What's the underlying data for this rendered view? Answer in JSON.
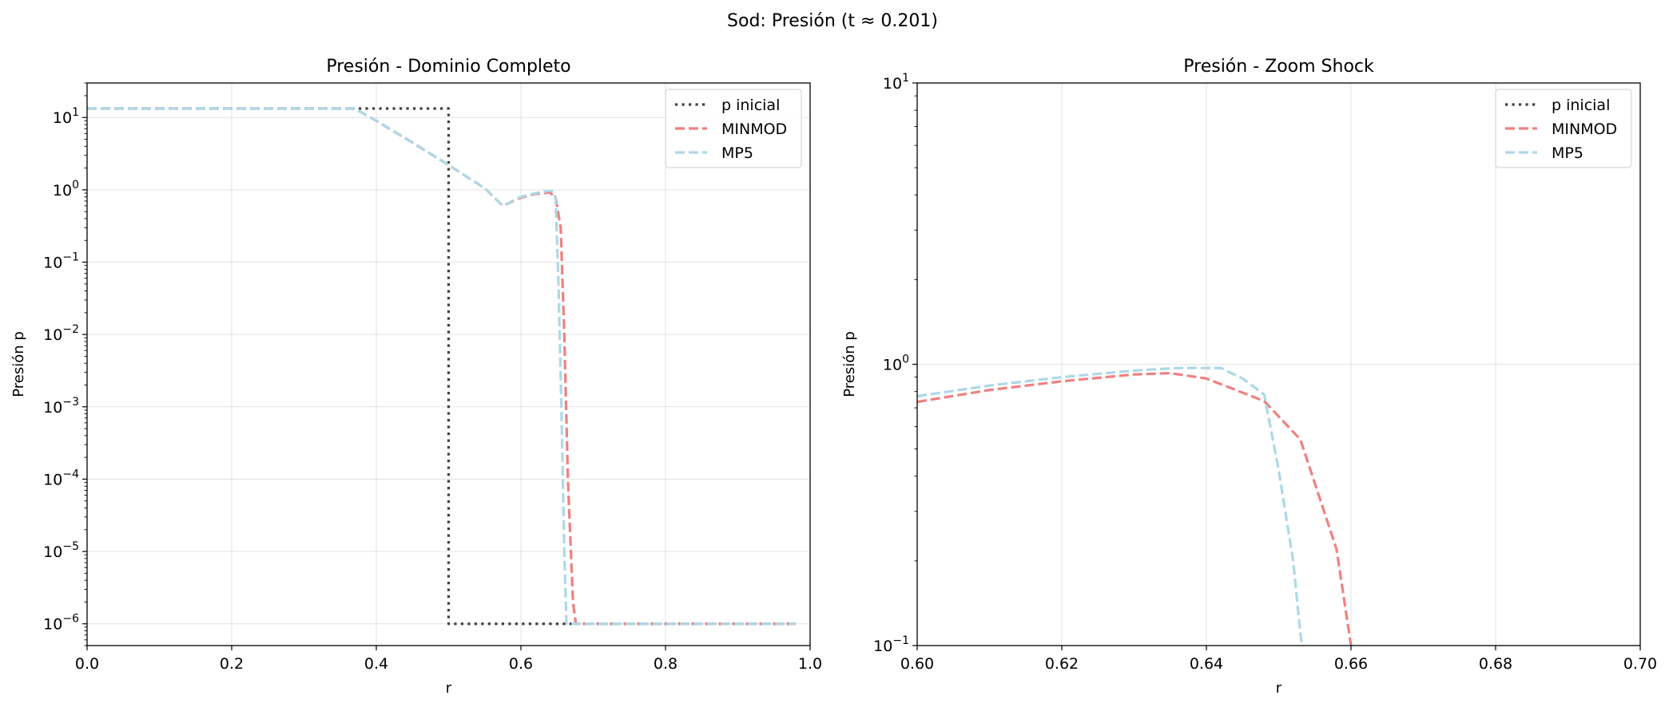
{
  "figure": {
    "suptitle": "Sod: Presión (t ≈ 0.201)"
  },
  "chart_data": [
    {
      "type": "line",
      "title": "Presión - Dominio Completo",
      "xlabel": "r",
      "ylabel": "Presión p",
      "xlim": [
        0.0,
        1.0
      ],
      "ylim": [
        5e-07,
        30
      ],
      "yscale": "log",
      "grid": true,
      "legend_position": "top-right",
      "x_ticks": [
        "0.0",
        "0.2",
        "0.4",
        "0.6",
        "0.8",
        "1.0"
      ],
      "y_ticks": [
        {
          "base": "10",
          "exp": "−6",
          "value": 1e-06
        },
        {
          "base": "10",
          "exp": "−5",
          "value": 1e-05
        },
        {
          "base": "10",
          "exp": "−4",
          "value": 0.0001
        },
        {
          "base": "10",
          "exp": "−3",
          "value": 0.001
        },
        {
          "base": "10",
          "exp": "−2",
          "value": 0.01
        },
        {
          "base": "10",
          "exp": "−1",
          "value": 0.1
        },
        {
          "base": "10",
          "exp": "0",
          "value": 1
        },
        {
          "base": "10",
          "exp": "1",
          "value": 10
        }
      ],
      "series": [
        {
          "name": "p inicial",
          "color": "#404040",
          "dash": "dotted",
          "x": [
            0.0,
            0.5,
            0.5,
            0.98
          ],
          "y": [
            13.3,
            13.3,
            1e-06,
            1e-06
          ]
        },
        {
          "name": "MINMOD",
          "color": "#f08080",
          "dash": "dashed",
          "x": [
            0.0,
            0.37,
            0.4,
            0.45,
            0.5,
            0.55,
            0.575,
            0.6,
            0.62,
            0.64,
            0.648,
            0.655,
            0.66,
            0.665,
            0.672,
            0.676,
            0.98
          ],
          "y": [
            13.3,
            13.3,
            9.0,
            4.5,
            2.2,
            1.05,
            0.6,
            0.78,
            0.88,
            0.92,
            0.78,
            0.3,
            0.01,
            0.0001,
            2e-06,
            1e-06,
            1e-06
          ]
        },
        {
          "name": "MP5",
          "color": "#add8e6",
          "dash": "dashed",
          "x": [
            0.0,
            0.37,
            0.4,
            0.45,
            0.5,
            0.55,
            0.575,
            0.6,
            0.62,
            0.64,
            0.645,
            0.648,
            0.652,
            0.656,
            0.66,
            0.663,
            0.98
          ],
          "y": [
            13.3,
            13.3,
            9.0,
            4.5,
            2.2,
            1.05,
            0.6,
            0.8,
            0.9,
            0.97,
            0.95,
            0.75,
            0.05,
            0.001,
            1e-05,
            1e-06,
            1e-06
          ]
        }
      ]
    },
    {
      "type": "line",
      "title": "Presión - Zoom Shock",
      "xlabel": "r",
      "ylabel": "Presión p",
      "xlim": [
        0.6,
        0.7
      ],
      "ylim": [
        0.1,
        10
      ],
      "yscale": "log",
      "grid": true,
      "legend_position": "top-right",
      "x_ticks": [
        "0.60",
        "0.62",
        "0.64",
        "0.66",
        "0.68",
        "0.70"
      ],
      "y_ticks": [
        {
          "base": "10",
          "exp": "−1",
          "value": 0.1
        },
        {
          "base": "10",
          "exp": "0",
          "value": 1
        },
        {
          "base": "10",
          "exp": "1",
          "value": 10
        }
      ],
      "series": [
        {
          "name": "p inicial",
          "color": "#404040",
          "dash": "dotted",
          "x": [],
          "y": []
        },
        {
          "name": "MINMOD",
          "color": "#f08080",
          "dash": "dashed",
          "x": [
            0.6,
            0.61,
            0.62,
            0.63,
            0.635,
            0.64,
            0.643,
            0.648,
            0.653,
            0.658,
            0.66,
            0.6605
          ],
          "y": [
            0.735,
            0.81,
            0.87,
            0.92,
            0.93,
            0.89,
            0.83,
            0.74,
            0.54,
            0.22,
            0.1,
            0.09
          ]
        },
        {
          "name": "MP5",
          "color": "#add8e6",
          "dash": "dashed",
          "x": [
            0.6,
            0.61,
            0.62,
            0.63,
            0.636,
            0.642,
            0.645,
            0.648,
            0.65,
            0.652,
            0.653,
            0.6535
          ],
          "y": [
            0.77,
            0.84,
            0.9,
            0.95,
            0.97,
            0.97,
            0.89,
            0.78,
            0.42,
            0.2,
            0.11,
            0.09
          ]
        }
      ]
    }
  ]
}
